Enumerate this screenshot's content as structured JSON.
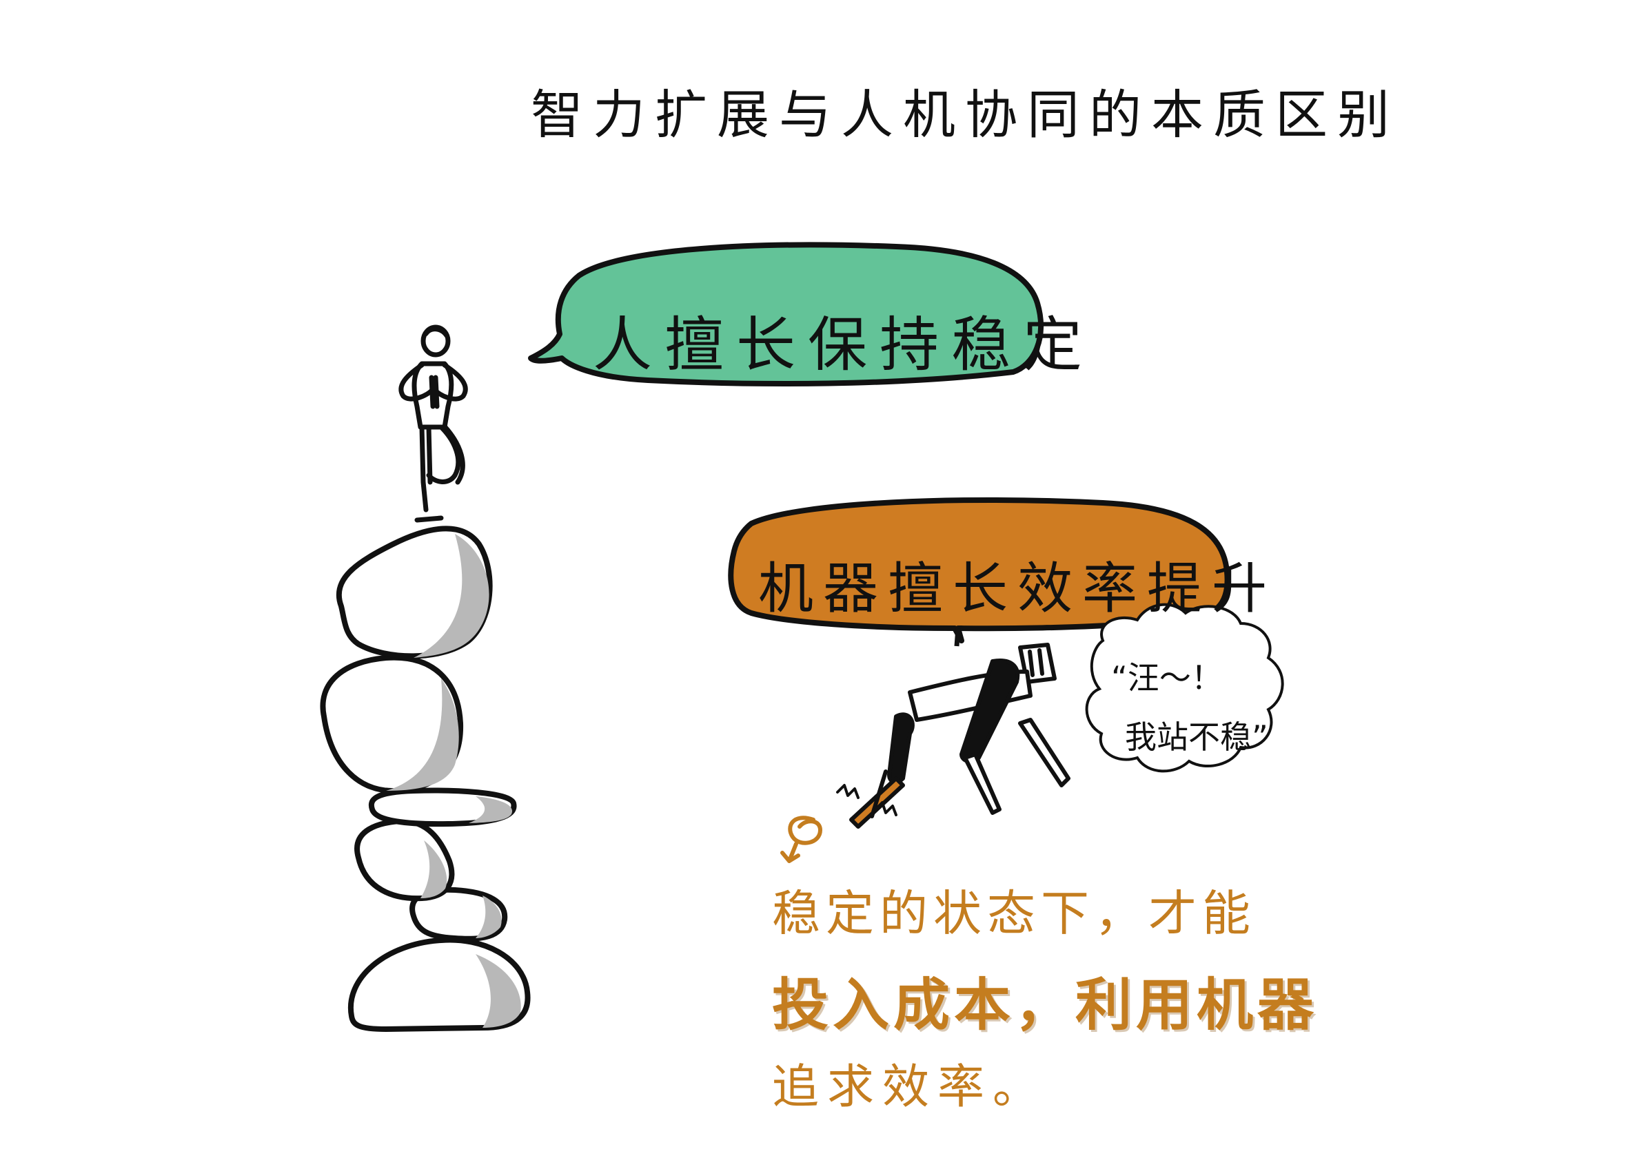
{
  "title": "智力扩展与人机协同的本质区别",
  "bubble_human": {
    "text": "人擅长保持稳定",
    "color": "#63c398"
  },
  "bubble_machine": {
    "text": "机器擅长效率提升",
    "color": "#cf7c22"
  },
  "thought_bubble": {
    "line1": "“汪～！",
    "line2": "我站不稳”"
  },
  "note": {
    "line1": "稳定的状态下，才能",
    "line2": "投入成本，利用机器",
    "line3": "追求效率。",
    "color": "#c47d1f"
  },
  "colors": {
    "ink": "#111111",
    "stone_shadow": "#b8b8b8",
    "background": "#ffffff"
  }
}
